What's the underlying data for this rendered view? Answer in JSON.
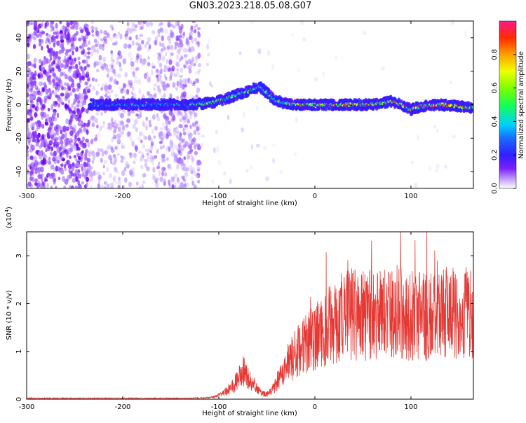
{
  "title": "GN03.2023.218.05.08.G07",
  "chart_data": [
    {
      "type": "heatmap",
      "xlabel": "Height of straight line (km)",
      "ylabel": "Frequency (Hz)",
      "xlim": [
        -300,
        165
      ],
      "ylim": [
        -50,
        50
      ],
      "x_ticks": [
        -300,
        -200,
        -100,
        0,
        100
      ],
      "y_ticks": [
        -40,
        -20,
        0,
        20,
        40
      ],
      "colorbar": {
        "label": "Normalized spectral amplitude",
        "range": [
          0,
          1
        ],
        "ticks": [
          0.0,
          0.2,
          0.4,
          0.6,
          0.8
        ]
      },
      "signal_track": {
        "height_km": [
          -235,
          -200,
          -170,
          -130,
          -110,
          -95,
          -85,
          -75,
          -65,
          -58,
          -50,
          -40,
          -20,
          0,
          20,
          40,
          60,
          70,
          80,
          90,
          100,
          110,
          130,
          150,
          165
        ],
        "frequency_hz": [
          0,
          0,
          0,
          0,
          1,
          3,
          5,
          7,
          9,
          11,
          7,
          2,
          0,
          0,
          0,
          0,
          0,
          1,
          2,
          0,
          -3,
          -1,
          0,
          -1,
          -2
        ]
      }
    },
    {
      "type": "line",
      "xlabel": "Height of straight line (km)",
      "ylabel": "SNR (10 * v/v)",
      "scale_label": "(x10",
      "scale_exp": "4",
      "scale_close": ")",
      "xlim": [
        -300,
        165
      ],
      "ylim": [
        0,
        3.5
      ],
      "x_ticks": [
        -300,
        -200,
        -100,
        0,
        100
      ],
      "y_ticks": [
        0,
        1,
        2,
        3
      ],
      "color": "#e53935",
      "envelope": {
        "x": [
          -300,
          -130,
          -110,
          -100,
          -90,
          -80,
          -75,
          -70,
          -60,
          -55,
          -50,
          -40,
          -35,
          -30,
          -20,
          -10,
          0,
          10,
          20,
          30,
          40,
          60,
          80,
          100,
          120,
          140,
          165
        ],
        "y": [
          0.02,
          0.02,
          0.03,
          0.08,
          0.18,
          0.4,
          0.6,
          0.45,
          0.2,
          0.12,
          0.1,
          0.3,
          0.5,
          0.7,
          0.95,
          1.15,
          1.3,
          1.45,
          1.6,
          1.75,
          1.8,
          1.75,
          1.85,
          1.75,
          1.7,
          1.8,
          1.75
        ]
      }
    }
  ]
}
